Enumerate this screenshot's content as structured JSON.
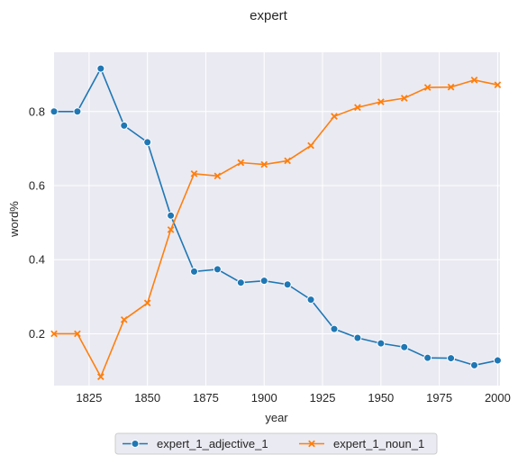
{
  "chart_data": {
    "type": "line",
    "title": "expert",
    "xlabel": "year",
    "ylabel": "word%",
    "xlim": [
      1810,
      2001
    ],
    "ylim": [
      0.06,
      0.96
    ],
    "xticks": [
      1825,
      1850,
      1875,
      1900,
      1925,
      1950,
      1975,
      2000
    ],
    "yticks": [
      0.2,
      0.4,
      0.6,
      0.8
    ],
    "grid": true,
    "legend_position": "bottom-center",
    "x": [
      1810,
      1820,
      1830,
      1840,
      1850,
      1860,
      1870,
      1880,
      1890,
      1900,
      1910,
      1920,
      1930,
      1940,
      1950,
      1960,
      1970,
      1980,
      1990,
      2000
    ],
    "series": [
      {
        "name": "expert_1_adjective_1",
        "color": "#1f77b4",
        "marker": "circle",
        "values": [
          0.8,
          0.8,
          0.916,
          0.762,
          0.717,
          0.519,
          0.368,
          0.374,
          0.338,
          0.343,
          0.333,
          0.292,
          0.213,
          0.189,
          0.174,
          0.164,
          0.135,
          0.134,
          0.115,
          0.128
        ]
      },
      {
        "name": "expert_1_noun_1",
        "color": "#ff7f0e",
        "marker": "x",
        "values": [
          0.2,
          0.2,
          0.084,
          0.238,
          0.283,
          0.481,
          0.632,
          0.626,
          0.662,
          0.657,
          0.667,
          0.708,
          0.787,
          0.811,
          0.826,
          0.836,
          0.865,
          0.866,
          0.885,
          0.872
        ]
      }
    ]
  }
}
